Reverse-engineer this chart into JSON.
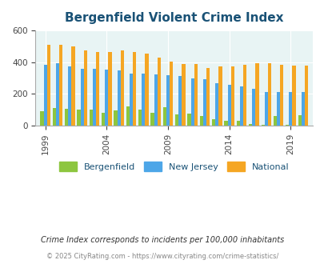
{
  "title": "Bergenfield Violent Crime Index",
  "years": [
    1999,
    2000,
    2001,
    2002,
    2003,
    2004,
    2005,
    2006,
    2007,
    2008,
    2009,
    2010,
    2011,
    2012,
    2013,
    2014,
    2015,
    2016,
    2017,
    2018,
    2019,
    2020
  ],
  "bergenfield": [
    90,
    110,
    105,
    100,
    100,
    80,
    95,
    120,
    100,
    80,
    115,
    70,
    75,
    60,
    40,
    30,
    30,
    10,
    5,
    60,
    5,
    65
  ],
  "new_jersey": [
    385,
    395,
    375,
    360,
    360,
    355,
    350,
    330,
    330,
    320,
    315,
    310,
    295,
    290,
    265,
    255,
    245,
    230,
    210,
    210,
    210,
    210
  ],
  "national": [
    510,
    510,
    500,
    475,
    465,
    465,
    475,
    465,
    455,
    430,
    405,
    390,
    390,
    365,
    375,
    375,
    385,
    395,
    395,
    385,
    380,
    380
  ],
  "ylim": [
    0,
    600
  ],
  "yticks": [
    0,
    200,
    400,
    600
  ],
  "color_bergenfield": "#8dc63f",
  "color_nj": "#4da6e8",
  "color_national": "#f5a623",
  "bg_color": "#e8f4f4",
  "title_color": "#1a5276",
  "legend_labels": [
    "Bergenfield",
    "New Jersey",
    "National"
  ],
  "footnote1": "Crime Index corresponds to incidents per 100,000 inhabitants",
  "footnote2": "© 2025 CityRating.com - https://www.cityrating.com/crime-statistics/",
  "bar_width": 0.27,
  "xlabel_tick_years": [
    1999,
    2004,
    2009,
    2014,
    2019
  ]
}
